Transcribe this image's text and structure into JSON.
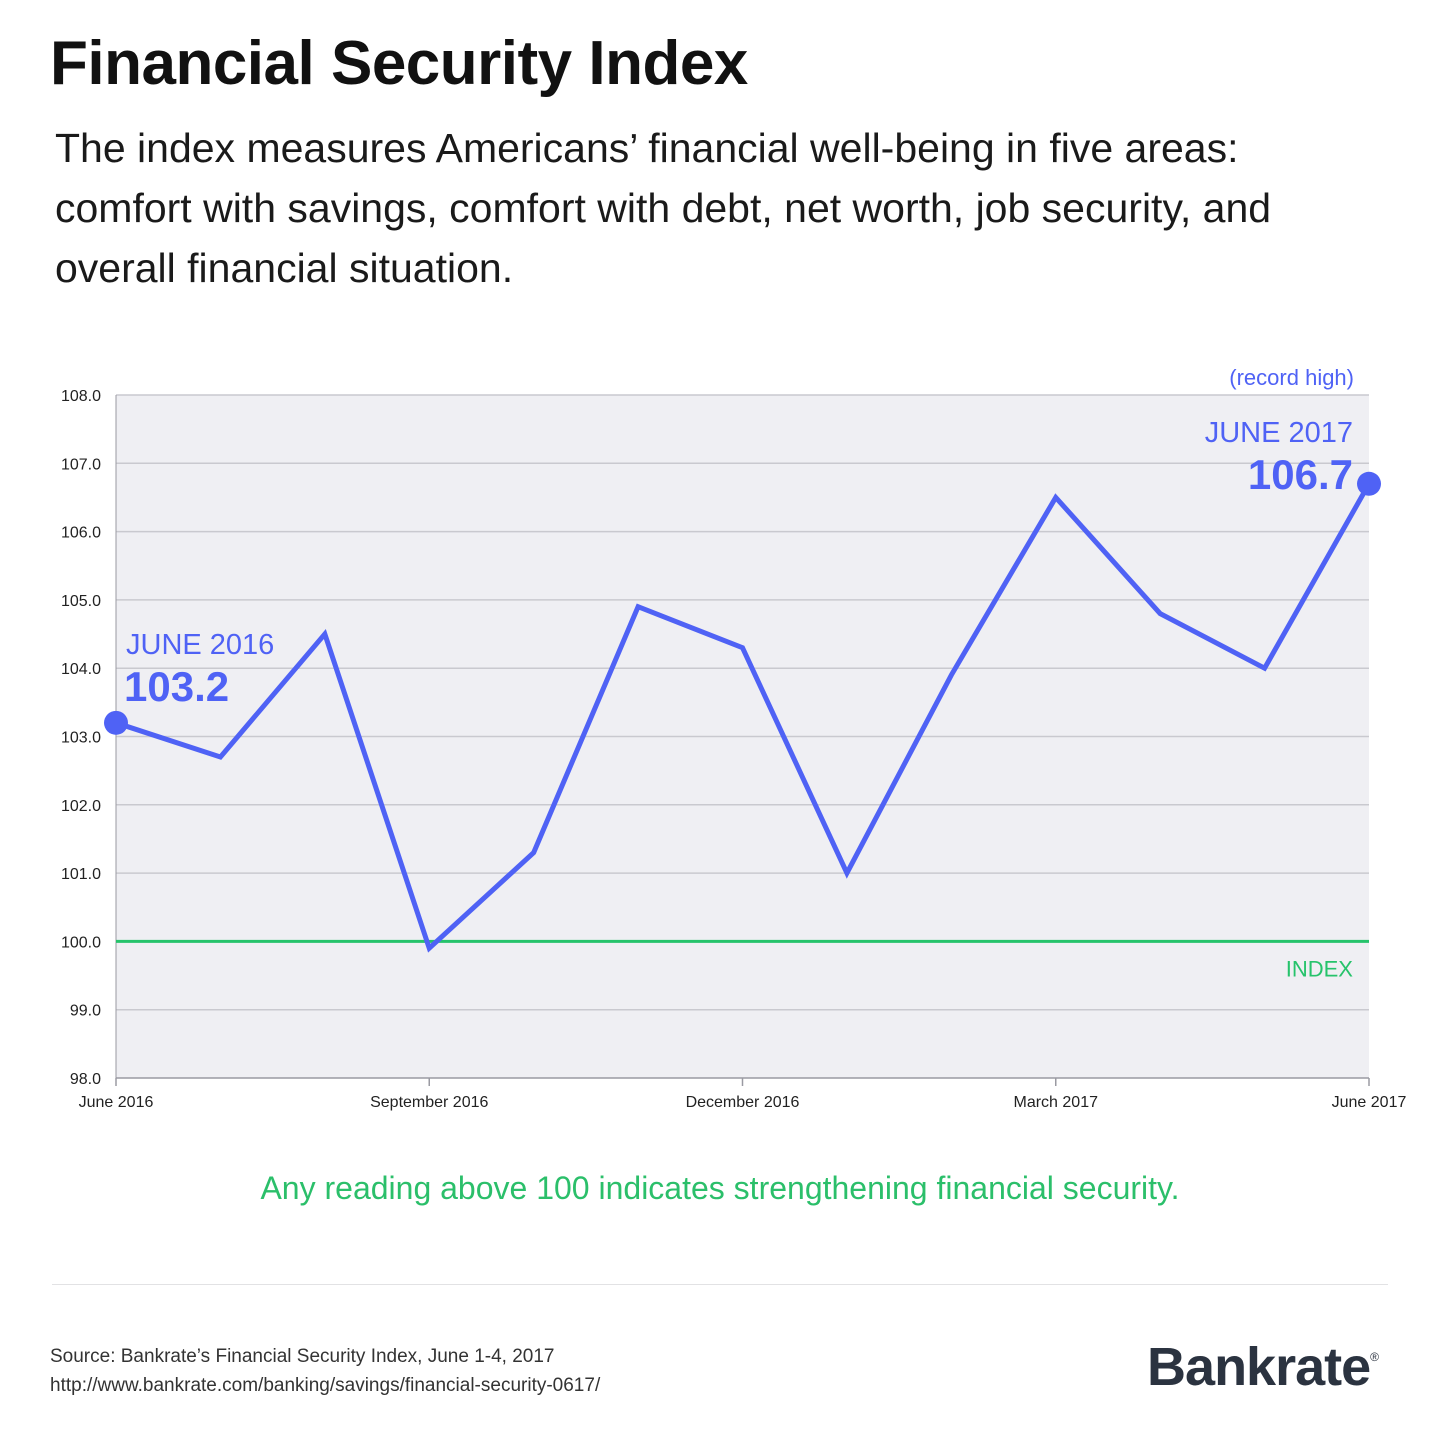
{
  "header": {
    "title": "Financial Security Index",
    "subtitle": "The index measures Americans’ financial well-being in five areas: comfort with savings, comfort with debt, net worth, job security, and overall financial situation."
  },
  "chart_data": {
    "type": "line",
    "title": "Financial Security Index",
    "xlabel": "",
    "ylabel": "",
    "x": [
      "June 2016",
      "July 2016",
      "August 2016",
      "September 2016",
      "October 2016",
      "November 2016",
      "December 2016",
      "January 2017",
      "February 2017",
      "March 2017",
      "April 2017",
      "May 2017",
      "June 2017"
    ],
    "x_tick_labels": [
      "June 2016",
      "",
      "",
      "September 2016",
      "",
      "",
      "December 2016",
      "",
      "",
      "March 2017",
      "",
      "",
      "June 2017"
    ],
    "series": [
      {
        "name": "Financial Security Index",
        "values": [
          103.2,
          102.7,
          104.5,
          99.9,
          101.3,
          104.9,
          104.3,
          101.0,
          103.9,
          106.5,
          104.8,
          104.0,
          106.7
        ]
      }
    ],
    "ylim": [
      98,
      108
    ],
    "yticks": [
      "98.0",
      "99.0",
      "100.0",
      "101.0",
      "102.0",
      "103.0",
      "104.0",
      "105.0",
      "106.0",
      "107.0",
      "108.0"
    ],
    "reference_line": {
      "value": 100,
      "label": "INDEX"
    },
    "annotations": {
      "start_label": "JUNE 2016",
      "start_value": "103.2",
      "end_label": "JUNE 2017",
      "end_value": "106.7",
      "end_note": "(record high)"
    },
    "grid": true
  },
  "footnote": "Any reading above 100 indicates strengthening financial security.",
  "source": {
    "line1": "Source: Bankrate’s Financial Security Index, June 1-4, 2017",
    "line2": "http://www.bankrate.com/banking/savings/financial-security-0617/"
  },
  "brand": {
    "name": "Bankrate",
    "mark": "®"
  },
  "colors": {
    "line": "#4f62f5",
    "index_line": "#26c36b",
    "plot_bg": "#efeff3",
    "grid": "#c9c9cf",
    "axis": "#9a9aa2"
  }
}
